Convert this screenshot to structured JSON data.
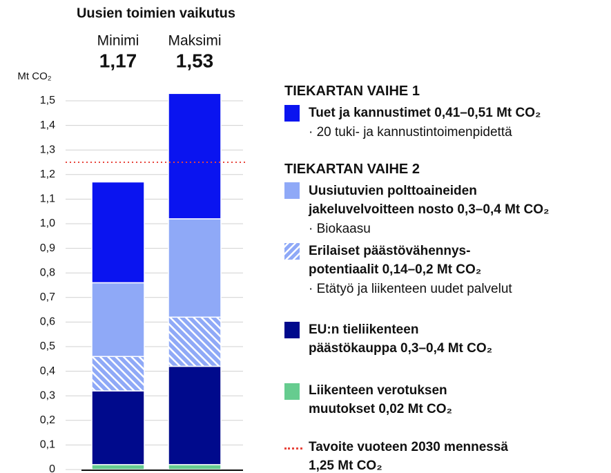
{
  "chart_data": {
    "type": "stacked_bar",
    "title": "Uusien toimien vaikutus",
    "y_label": "Mt CO₂",
    "categories": [
      "Minimi",
      "Maksimi"
    ],
    "totals": [
      1.17,
      1.53
    ],
    "total_labels": [
      "1,17",
      "1,53"
    ],
    "ylim": [
      0,
      1.5
    ],
    "yticks": [
      0,
      {
        "value": 0.1,
        "label": "0,1"
      },
      {
        "value": 0.2,
        "label": "0,2"
      },
      {
        "value": 0.3,
        "label": "0,3"
      },
      {
        "value": 0.4,
        "label": "0,4"
      },
      {
        "value": 0.5,
        "label": "0,5"
      },
      {
        "value": 0.6,
        "label": "0,6"
      },
      {
        "value": 0.7,
        "label": "0,7"
      },
      {
        "value": 0.8,
        "label": "0,8"
      },
      {
        "value": 0.9,
        "label": "0,9"
      },
      {
        "value": 1.0,
        "label": "1,0"
      },
      {
        "value": 1.1,
        "label": "1,1"
      },
      {
        "value": 1.2,
        "label": "1,2"
      },
      {
        "value": 1.3,
        "label": "1,3"
      },
      {
        "value": 1.4,
        "label": "1,4"
      },
      {
        "value": 1.5,
        "label": "1,5"
      }
    ],
    "grid": true,
    "legend_headings": [
      "TIEKARTAN VAIHE 1",
      "TIEKARTAN VAIHE 2"
    ],
    "series": [
      {
        "name": "Tuet ja kannustimet 0,41–0,51 Mt CO₂",
        "note": "· 20 tuki- ja kannustintoimenpidettä",
        "color": "#0a14f0",
        "values": [
          0.41,
          0.51
        ]
      },
      {
        "name": "Uusiutuvien polttoaineiden\njakeluvelvoitteen nosto 0,3–0,4 Mt CO₂",
        "note": "· Biokaasu",
        "color": "#8fa9f7",
        "values": [
          0.3,
          0.4
        ]
      },
      {
        "name": "Erilaiset päästövähennys-\npotentiaalit 0,14–0,2 Mt CO₂",
        "note": "· Etätyö ja liikenteen uudet palvelut",
        "color": "#8fa9f7",
        "hatch": true,
        "values": [
          0.14,
          0.2
        ]
      },
      {
        "name": "EU:n tieliikenteen\npäästökauppa 0,3–0,4 Mt CO₂",
        "color": "#000a8c",
        "values": [
          0.3,
          0.4
        ]
      },
      {
        "name": "Liikenteen verotuksen\nmuutokset 0,02 Mt CO₂",
        "color": "#66cc8f",
        "values": [
          0.02,
          0.02
        ]
      }
    ],
    "target": {
      "value": 1.25,
      "label": "Tavoite vuoteen 2030 mennessä\n1,25 Mt CO₂",
      "color": "#e8453c"
    }
  }
}
